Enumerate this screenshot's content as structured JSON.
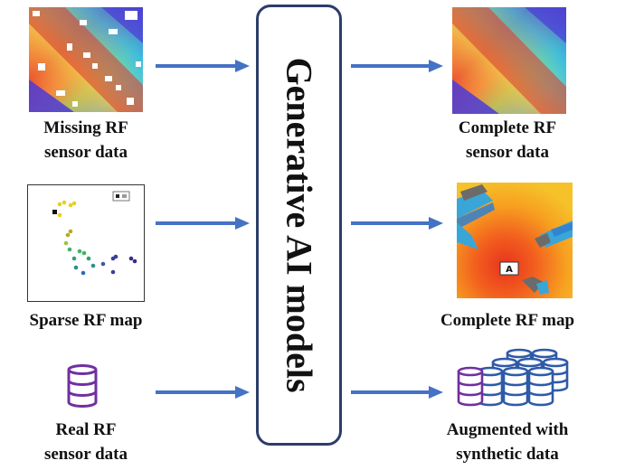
{
  "center": {
    "title": "Generative AI models"
  },
  "inputs": [
    {
      "label_line1": "Missing RF",
      "label_line2": "sensor data"
    },
    {
      "label_line1": "Sparse RF map",
      "label_line2": ""
    },
    {
      "label_line1": "Real RF",
      "label_line2": "sensor data"
    }
  ],
  "outputs": [
    {
      "label_line1": "Complete RF",
      "label_line2": "sensor data"
    },
    {
      "label_line1": "Complete RF map",
      "label_line2": ""
    },
    {
      "label_line1": "Augmented with",
      "label_line2": "synthetic data"
    }
  ],
  "colors": {
    "arrow": "#4472c4",
    "box_border": "#2c3d6b",
    "db_purple": "#7030a0",
    "db_blue": "#2e5aa8"
  },
  "icons": {
    "input_db": "database-icon",
    "output_db": "database-stack-icon",
    "access_point": "access-point-icon"
  }
}
